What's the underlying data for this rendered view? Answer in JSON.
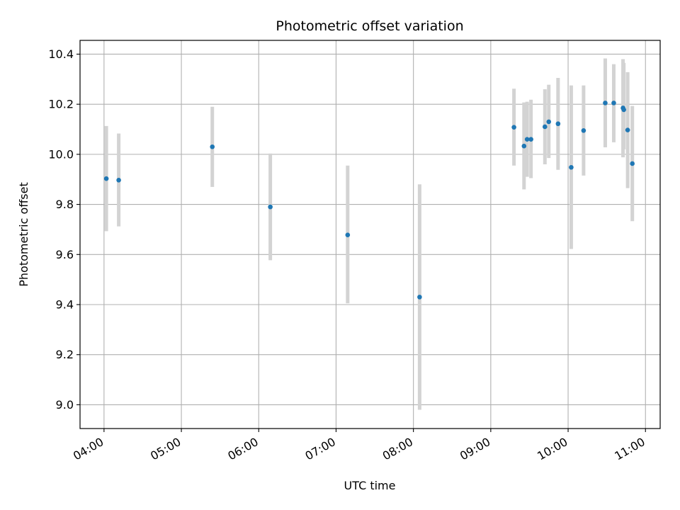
{
  "chart_data": {
    "type": "scatter",
    "title": "Photometric offset variation",
    "xlabel": "UTC time",
    "ylabel": "Photometric offset",
    "x_unit": "hours UTC",
    "xlim": [
      3.69,
      11.19
    ],
    "ylim": [
      8.905,
      10.455
    ],
    "x_ticks": [
      {
        "value": 4,
        "label": "04:00"
      },
      {
        "value": 5,
        "label": "05:00"
      },
      {
        "value": 6,
        "label": "06:00"
      },
      {
        "value": 7,
        "label": "07:00"
      },
      {
        "value": 8,
        "label": "08:00"
      },
      {
        "value": 9,
        "label": "09:00"
      },
      {
        "value": 10,
        "label": "10:00"
      },
      {
        "value": 11,
        "label": "11:00"
      }
    ],
    "y_ticks": [
      {
        "value": 9.0,
        "label": "9.0"
      },
      {
        "value": 9.2,
        "label": "9.2"
      },
      {
        "value": 9.4,
        "label": "9.4"
      },
      {
        "value": 9.6,
        "label": "9.6"
      },
      {
        "value": 9.8,
        "label": "9.8"
      },
      {
        "value": 10.0,
        "label": "10.0"
      },
      {
        "value": 10.2,
        "label": "10.2"
      },
      {
        "value": 10.4,
        "label": "10.4"
      }
    ],
    "grid": true,
    "colors": {
      "point": "#1f77b4",
      "errorbar": "#d3d3d3",
      "grid": "#b0b0b0"
    },
    "points": [
      {
        "x": 4.03,
        "y": 9.903,
        "yerr_low": 9.693,
        "yerr_high": 10.113
      },
      {
        "x": 4.19,
        "y": 9.897,
        "yerr_low": 9.712,
        "yerr_high": 10.083
      },
      {
        "x": 5.4,
        "y": 10.03,
        "yerr_low": 9.87,
        "yerr_high": 10.19
      },
      {
        "x": 6.15,
        "y": 9.79,
        "yerr_low": 9.577,
        "yerr_high": 10.003
      },
      {
        "x": 7.15,
        "y": 9.678,
        "yerr_low": 9.405,
        "yerr_high": 9.955
      },
      {
        "x": 8.08,
        "y": 9.43,
        "yerr_low": 8.98,
        "yerr_high": 9.88
      },
      {
        "x": 9.3,
        "y": 10.108,
        "yerr_low": 9.955,
        "yerr_high": 10.262
      },
      {
        "x": 9.43,
        "y": 10.033,
        "yerr_low": 9.86,
        "yerr_high": 10.207
      },
      {
        "x": 9.47,
        "y": 10.06,
        "yerr_low": 9.91,
        "yerr_high": 10.21
      },
      {
        "x": 9.52,
        "y": 10.06,
        "yerr_low": 9.905,
        "yerr_high": 10.218
      },
      {
        "x": 9.7,
        "y": 10.11,
        "yerr_low": 9.96,
        "yerr_high": 10.26
      },
      {
        "x": 9.75,
        "y": 10.13,
        "yerr_low": 9.985,
        "yerr_high": 10.278
      },
      {
        "x": 9.87,
        "y": 10.122,
        "yerr_low": 9.938,
        "yerr_high": 10.305
      },
      {
        "x": 10.04,
        "y": 9.948,
        "yerr_low": 9.622,
        "yerr_high": 10.275
      },
      {
        "x": 10.2,
        "y": 10.095,
        "yerr_low": 9.915,
        "yerr_high": 10.275
      },
      {
        "x": 10.48,
        "y": 10.205,
        "yerr_low": 10.028,
        "yerr_high": 10.383
      },
      {
        "x": 10.59,
        "y": 10.205,
        "yerr_low": 10.048,
        "yerr_high": 10.36
      },
      {
        "x": 10.71,
        "y": 10.185,
        "yerr_low": 9.988,
        "yerr_high": 10.38
      },
      {
        "x": 10.72,
        "y": 10.178,
        "yerr_low": 10.02,
        "yerr_high": 10.365
      },
      {
        "x": 10.77,
        "y": 10.097,
        "yerr_low": 9.865,
        "yerr_high": 10.328
      },
      {
        "x": 10.83,
        "y": 9.963,
        "yerr_low": 9.733,
        "yerr_high": 10.193
      }
    ]
  }
}
